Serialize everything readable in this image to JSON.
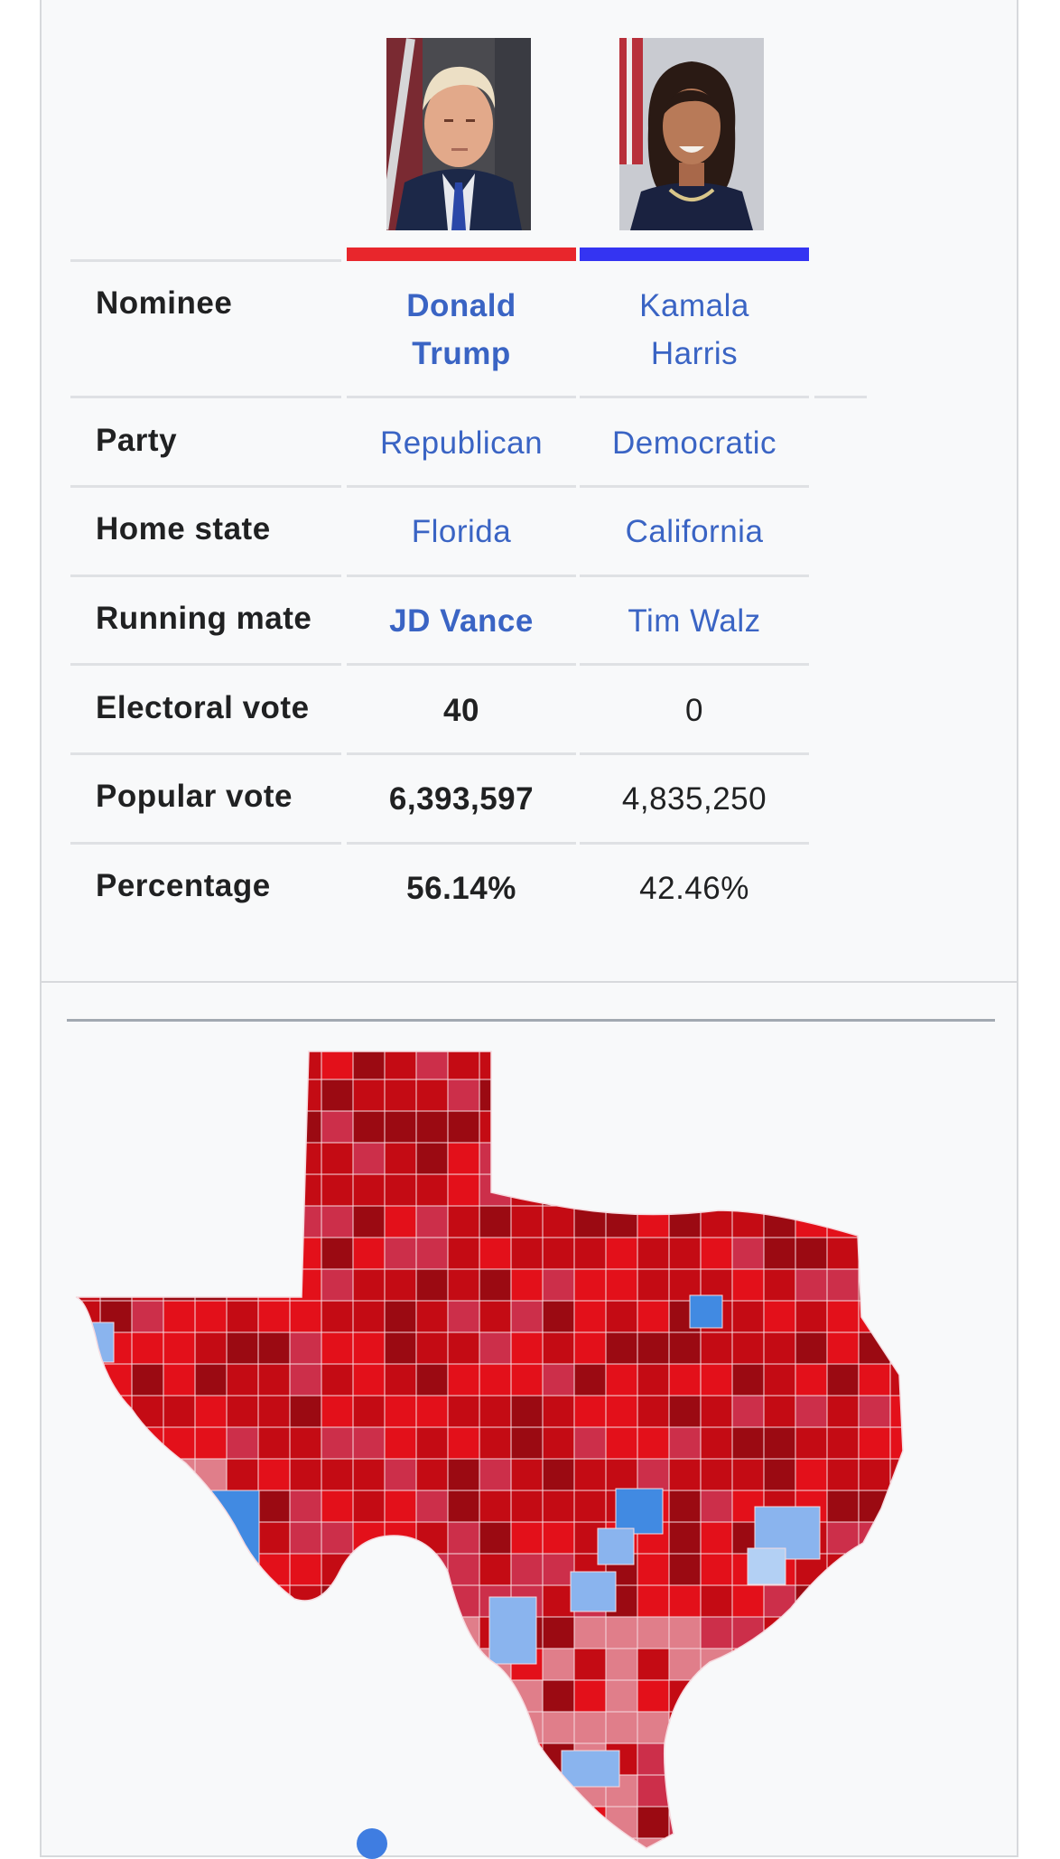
{
  "candidates": [
    {
      "name_line1": "Donald",
      "name_line2": "Trump",
      "party": "Republican",
      "home_state": "Florida",
      "running_mate": "JD Vance",
      "electoral_vote": "40",
      "popular_vote": "6,393,597",
      "percentage": "56.14%",
      "color": "#e8262c"
    },
    {
      "name_line1": "Kamala",
      "name_line2": "Harris",
      "party": "Democratic",
      "home_state": "California",
      "running_mate": "Tim Walz",
      "electoral_vote": "0",
      "popular_vote": "4,835,250",
      "percentage": "42.46%",
      "color": "#3434f2"
    }
  ],
  "labels": {
    "nominee": "Nominee",
    "party": "Party",
    "home_state": "Home state",
    "running_mate": "Running mate",
    "electoral_vote": "Electoral vote",
    "popular_vote": "Popular vote",
    "percentage": "Percentage"
  },
  "map": {
    "palette": {
      "r_safe": "#9b0a12",
      "r_strong": "#c40b14",
      "r_lean": "#e3101a",
      "r_tilt": "#cc2f4a",
      "r_light": "#e07e8a",
      "d_strong": "#418ae2",
      "d_lean": "#8ab4ee",
      "d_light": "#b3d0f4",
      "border": "#f6dbe0"
    }
  }
}
